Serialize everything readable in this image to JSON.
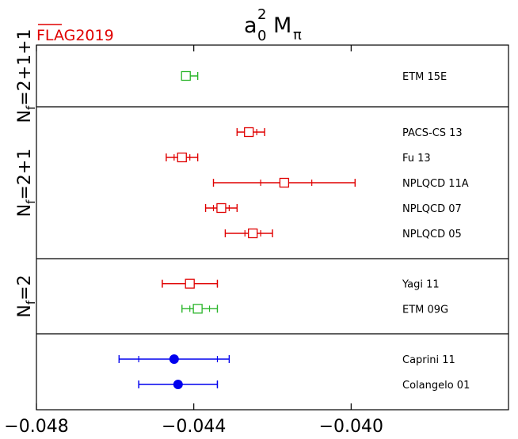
{
  "header": {
    "flag": "FLAG2019",
    "flag_color": "#e00000"
  },
  "chart_data": {
    "type": "scatter",
    "title_base": "a",
    "title_sub": "0",
    "title_sup": "2",
    "title_tail": "M",
    "title_tail_sub": "π",
    "xlim": [
      -0.048,
      -0.036
    ],
    "xticks": [
      -0.048,
      -0.044,
      -0.04
    ],
    "xtick_labels": [
      "−0.048",
      "−0.044",
      "−0.040"
    ],
    "grid": false,
    "colors": {
      "red": "#e00000",
      "green": "#2ab52a",
      "blue": "#0000ee"
    },
    "panels": [
      {
        "label_main": "N",
        "label_sub": "f",
        "label_tail": "=2+1+1",
        "row_from": 0,
        "row_to": 1
      },
      {
        "label_main": "N",
        "label_sub": "f",
        "label_tail": "=2+1",
        "row_from": 1,
        "row_to": 7
      },
      {
        "label_main": "N",
        "label_sub": "f",
        "label_tail": "=2",
        "row_from": 7,
        "row_to": 10
      },
      {
        "label_main": "",
        "label_sub": "",
        "label_tail": "",
        "row_from": 10,
        "row_to": 13
      }
    ],
    "points": [
      {
        "name": "ETM 15E",
        "row": 0.5,
        "value": -0.0442,
        "stat": [
          -0.0443,
          -0.0441
        ],
        "total": [
          -0.0443,
          -0.0439
        ],
        "color": "green",
        "marker": "open-square"
      },
      {
        "name": "PACS-CS 13",
        "row": 2,
        "value": -0.0426,
        "stat": [
          -0.0427,
          -0.0424
        ],
        "total": [
          -0.0429,
          -0.0422
        ],
        "color": "red",
        "marker": "open-square"
      },
      {
        "name": "Fu 13",
        "row": 3,
        "value": -0.0443,
        "stat": [
          -0.0445,
          -0.0441
        ],
        "total": [
          -0.0447,
          -0.0439
        ],
        "color": "red",
        "marker": "open-square"
      },
      {
        "name": "NPLQCD 11A",
        "row": 4,
        "value": -0.0417,
        "stat": [
          -0.0423,
          -0.041
        ],
        "total": [
          -0.0435,
          -0.0399
        ],
        "color": "red",
        "marker": "open-square"
      },
      {
        "name": "NPLQCD 07",
        "row": 5,
        "value": -0.0433,
        "stat": [
          -0.0435,
          -0.0431
        ],
        "total": [
          -0.0437,
          -0.0429
        ],
        "color": "red",
        "marker": "open-square"
      },
      {
        "name": "NPLQCD 05",
        "row": 6,
        "value": -0.0425,
        "stat": [
          -0.0427,
          -0.0423
        ],
        "total": [
          -0.0432,
          -0.042
        ],
        "color": "red",
        "marker": "open-square"
      },
      {
        "name": "Yagi 11",
        "row": 8,
        "value": -0.0441,
        "stat": [
          -0.0448,
          -0.0434
        ],
        "total": [
          -0.0448,
          -0.0434
        ],
        "color": "red",
        "marker": "open-square"
      },
      {
        "name": "ETM 09G",
        "row": 9,
        "value": -0.0439,
        "stat": [
          -0.0441,
          -0.0436
        ],
        "total": [
          -0.0443,
          -0.0434
        ],
        "color": "green",
        "marker": "open-square"
      },
      {
        "name": "Caprini 11",
        "row": 11,
        "value": -0.0445,
        "stat": [
          -0.0454,
          -0.0434
        ],
        "total": [
          -0.0459,
          -0.0431
        ],
        "color": "blue",
        "marker": "filled-circle"
      },
      {
        "name": "Colangelo 01",
        "row": 12,
        "value": -0.0444,
        "stat": [
          -0.0454,
          -0.0434
        ],
        "total": [
          -0.0454,
          -0.0434
        ],
        "color": "blue",
        "marker": "filled-circle"
      }
    ]
  }
}
